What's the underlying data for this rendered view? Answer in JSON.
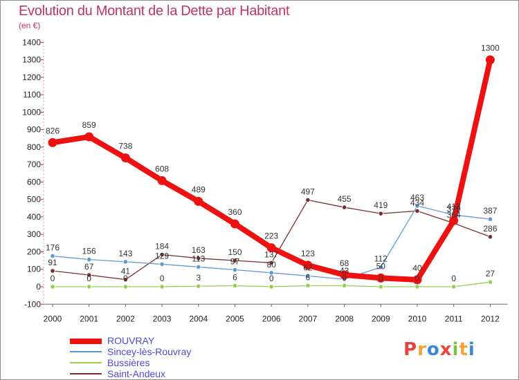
{
  "title": "Evolution du Montant de la Dette par Habitant",
  "unit": "(en €)",
  "brand": {
    "text": "Proxiti",
    "colors": [
      "#e8443a",
      "#f2a33a",
      "#3a87d8",
      "#e8443a",
      "#7cc242",
      "#f2a33a",
      "#3a87d8"
    ]
  },
  "chart_data": {
    "type": "line",
    "title": "Evolution du Montant de la Dette par Habitant",
    "ylabel": "(en €)",
    "xlabel": "",
    "ylim": [
      -100,
      1400
    ],
    "grid": false,
    "legend_placement": "bottom-left",
    "yticks": [
      "-100",
      "0",
      "100",
      "200",
      "300",
      "400",
      "500",
      "600",
      "700",
      "800",
      "900",
      "1000",
      "1100",
      "1200",
      "1300",
      "1400"
    ],
    "categories": [
      "2000",
      "2001",
      "2002",
      "2003",
      "2004",
      "2005",
      "2006",
      "2007",
      "2008",
      "2009",
      "2010",
      "2011",
      "2012"
    ],
    "series": [
      {
        "name": "ROUVRAY",
        "color": "#ee1111",
        "values": [
          826,
          859,
          738,
          608,
          489,
          360,
          223,
          123,
          68,
          50,
          40,
          379,
          1300
        ],
        "labels": [
          "826",
          "859",
          "738",
          "608",
          "489",
          "360",
          "223",
          "123",
          "68",
          "50",
          "40",
          "379",
          "1300"
        ]
      },
      {
        "name": "Sincey-lès-Rouvray",
        "color": "#5b9ad5",
        "values": [
          176,
          156,
          143,
          129,
          113,
          97,
          80,
          62,
          43,
          112,
          463,
          412,
          387
        ],
        "labels": [
          "176",
          "156",
          "143",
          "129",
          "113",
          "97",
          "80",
          "62",
          "43",
          "112",
          "463",
          "412",
          "387"
        ]
      },
      {
        "name": "Bussières",
        "color": "#92d050",
        "values": [
          0,
          0,
          0,
          0,
          3,
          6,
          0,
          6,
          6,
          0,
          0,
          0,
          27
        ],
        "labels": [
          "0",
          "0",
          "0",
          "0",
          "3",
          "6",
          "0",
          "6",
          "6",
          "0",
          "0",
          "0",
          "27"
        ]
      },
      {
        "name": "Saint-Andeux",
        "color": "#7b2c2c",
        "values": [
          91,
          67,
          41,
          184,
          163,
          150,
          137,
          497,
          455,
          419,
          434,
          364,
          286
        ],
        "labels": [
          "91",
          "67",
          "41",
          "184",
          "163",
          "150",
          "137",
          "497",
          "455",
          "419",
          "434",
          "364",
          "286"
        ]
      }
    ]
  }
}
